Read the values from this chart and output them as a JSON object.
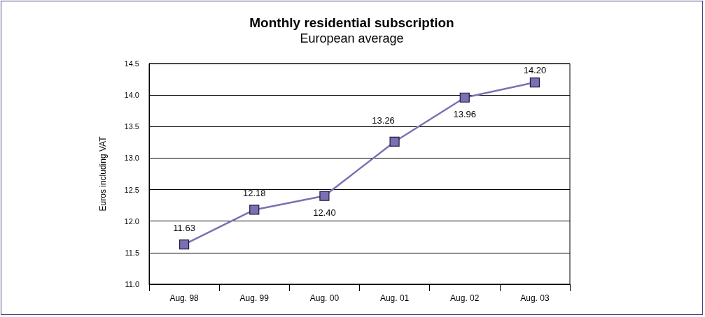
{
  "chart_data": {
    "type": "line",
    "title": "Monthly residential subscription",
    "subtitle": "European average",
    "ylabel": "Euros including VAT",
    "categories": [
      "Aug. 98",
      "Aug. 99",
      "Aug. 00",
      "Aug. 01",
      "Aug. 02",
      "Aug. 03"
    ],
    "series": [
      {
        "color": "#7b70b3",
        "values": [
          11.63,
          12.18,
          12.4,
          13.26,
          13.96,
          14.2
        ],
        "value_labels": [
          "11.63",
          "12.18",
          "12.40",
          "13.26",
          "13.96",
          "14.20"
        ]
      }
    ],
    "ylim": [
      11,
      14.5
    ],
    "yticks": [
      {
        "value": 11,
        "label": "11.0"
      },
      {
        "value": 11.5,
        "label": "11.5"
      },
      {
        "value": 12,
        "label": "12.0"
      },
      {
        "value": 12.5,
        "label": "12.5"
      },
      {
        "value": 13,
        "label": "13.0"
      },
      {
        "value": 13.5,
        "label": "13.5"
      },
      {
        "value": 14,
        "label": "14.0"
      },
      {
        "value": 14.5,
        "label": "14.5"
      }
    ],
    "grid": "y",
    "marker": "square",
    "line_style": "solid"
  }
}
